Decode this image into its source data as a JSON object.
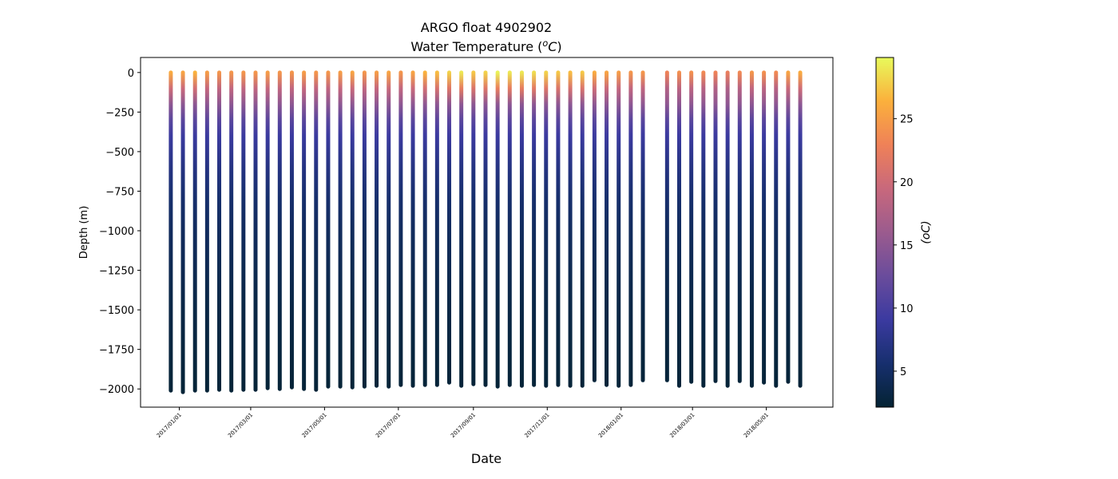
{
  "chart_data": {
    "type": "scatter",
    "title": [
      "ARGO float 4902902",
      "Water Temperature (oC)"
    ],
    "xlabel": "Date",
    "ylabel": "Depth (m)",
    "xlim": [
      "2016-11-30",
      "2018-06-25"
    ],
    "ylim": [
      -2115,
      95
    ],
    "grid": false,
    "x_ticks": [
      "2017/01/01",
      "2017/03/01",
      "2017/05/01",
      "2017/07/01",
      "2017/09/01",
      "2017/11/01",
      "2018/01/01",
      "2018/03/01",
      "2018/05/01"
    ],
    "y_ticks": [
      0,
      -250,
      -500,
      -750,
      -1000,
      -1250,
      -1500,
      -1750,
      -2000
    ],
    "colorbar": {
      "label": "(oC)",
      "range": [
        2.15,
        29.85
      ],
      "ticks": [
        5,
        10,
        15,
        20,
        25
      ],
      "colormap": [
        "#042333",
        "#172f6e",
        "#3b3aa0",
        "#6a4c9c",
        "#9b5b8e",
        "#c8687c",
        "#ef8158",
        "#fbb03c",
        "#e8fa5b"
      ]
    },
    "profiles": {
      "dates": [
        "2016-12-25",
        "2017-01-04",
        "2017-01-14",
        "2017-01-24",
        "2017-02-03",
        "2017-02-13",
        "2017-02-23",
        "2017-03-05",
        "2017-03-15",
        "2017-03-25",
        "2017-04-04",
        "2017-04-14",
        "2017-04-24",
        "2017-05-04",
        "2017-05-14",
        "2017-05-24",
        "2017-06-03",
        "2017-06-13",
        "2017-06-23",
        "2017-07-03",
        "2017-07-13",
        "2017-07-23",
        "2017-08-02",
        "2017-08-12",
        "2017-08-22",
        "2017-09-01",
        "2017-09-11",
        "2017-09-21",
        "2017-10-01",
        "2017-10-11",
        "2017-10-21",
        "2017-10-31",
        "2017-11-10",
        "2017-11-20",
        "2017-11-30",
        "2017-12-10",
        "2017-12-20",
        "2017-12-30",
        "2018-01-09",
        "2018-01-19",
        "2018-02-08",
        "2018-02-18",
        "2018-02-28",
        "2018-03-10",
        "2018-03-20",
        "2018-03-30",
        "2018-04-09",
        "2018-04-19",
        "2018-04-29",
        "2018-05-09",
        "2018-05-19",
        "2018-05-29"
      ],
      "max_depth": [
        -2010,
        -2020,
        -2010,
        -2010,
        -2005,
        -2010,
        -2005,
        -2005,
        -1995,
        -2000,
        -1990,
        -2000,
        -2005,
        -1985,
        -1985,
        -1990,
        -1985,
        -1980,
        -1985,
        -1975,
        -1980,
        -1975,
        -1975,
        -1960,
        -1980,
        -1970,
        -1975,
        -1985,
        -1975,
        -1980,
        -1975,
        -1980,
        -1975,
        -1980,
        -1980,
        -1945,
        -1975,
        -1980,
        -1975,
        -1945,
        -1945,
        -1980,
        -1955,
        -1980,
        -1950,
        -1980,
        -1950,
        -1980,
        -1960,
        -1980,
        -1955,
        -1980
      ],
      "surface_temp": [
        26,
        25.5,
        26.5,
        25,
        24.5,
        24.5,
        24.5,
        24.5,
        25,
        24.5,
        24.5,
        25,
        24.5,
        24.5,
        25,
        25.5,
        24.5,
        25,
        25.5,
        24.5,
        25.5,
        26.5,
        27,
        28,
        29,
        27.5,
        28,
        29.5,
        29,
        29,
        28.5,
        28,
        27.5,
        27,
        27.5,
        26,
        25.5,
        25,
        24.5,
        24.5,
        23,
        24,
        24,
        23.5,
        23,
        22.5,
        23.5,
        24.5,
        24,
        23.5,
        25.5,
        26
      ]
    }
  }
}
